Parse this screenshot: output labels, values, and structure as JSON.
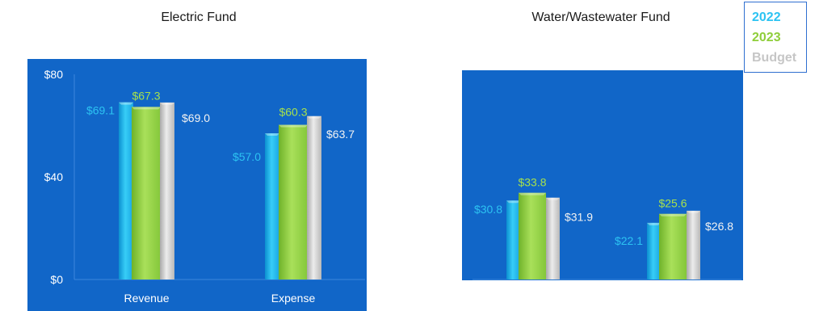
{
  "chart_data": [
    {
      "type": "bar",
      "title": "Electric Fund",
      "categories": [
        "Revenue",
        "Expense"
      ],
      "series": [
        {
          "name": "2022",
          "values": [
            69.1,
            57.0
          ],
          "labels": [
            "$69.1",
            "$57.0"
          ]
        },
        {
          "name": "2023",
          "values": [
            67.3,
            60.3
          ],
          "labels": [
            "$67.3",
            "$60.3"
          ]
        },
        {
          "name": "Budget",
          "values": [
            69.0,
            63.7
          ],
          "labels": [
            "$69.0",
            "$63.7"
          ]
        }
      ],
      "yticks": [
        "$0",
        "$40",
        "$80"
      ],
      "ylim": [
        0,
        80
      ],
      "grid": false,
      "legend": "top-right"
    },
    {
      "type": "bar",
      "title": "Water/Wastewater Fund",
      "categories": [
        "",
        "Expense"
      ],
      "series": [
        {
          "name": "2022",
          "values": [
            30.8,
            22.1
          ],
          "labels": [
            "$30.8",
            "$22.1"
          ]
        },
        {
          "name": "2023",
          "values": [
            33.8,
            25.6
          ],
          "labels": [
            "$33.8",
            "$25.6"
          ]
        },
        {
          "name": "Budget",
          "values": [
            31.9,
            26.8
          ],
          "labels": [
            "$31.9",
            "$26.8"
          ]
        }
      ],
      "ylim": [
        0,
        80
      ],
      "grid": false
    }
  ],
  "legend": {
    "items": [
      {
        "label": "2022",
        "color": "#2cc3f2"
      },
      {
        "label": "2023",
        "color": "#8fce3a"
      },
      {
        "label": "Budget",
        "color": "#c6c6c6"
      }
    ]
  },
  "colors": {
    "panel": "#1166c8",
    "s2022": "#1fb5ee",
    "s2023": "#93d34a",
    "budget": "#d2d2d2",
    "label2022": "#2cc3f2",
    "label2023": "#a6e04c",
    "labelBudget": "#f2f2f2"
  }
}
